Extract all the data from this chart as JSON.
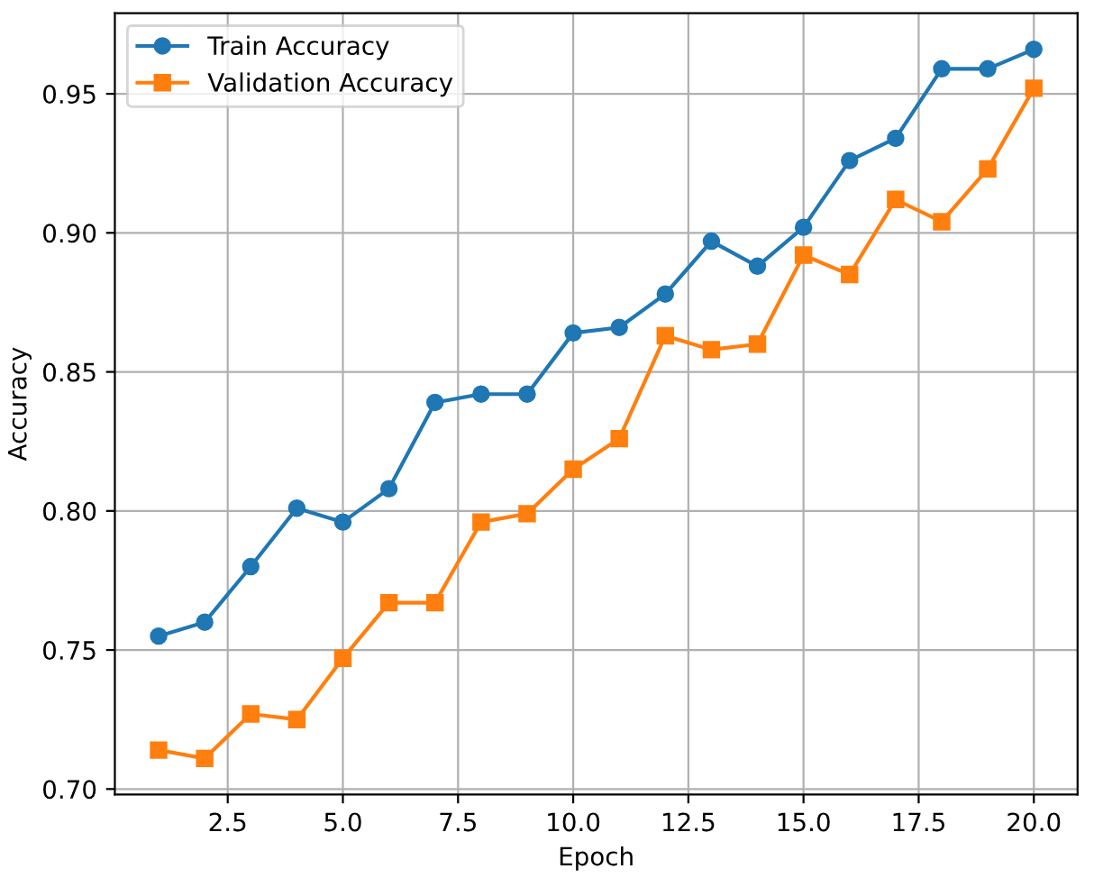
{
  "chart_data": {
    "type": "line",
    "xlabel": "Epoch",
    "ylabel": "Accuracy",
    "x": [
      1,
      2,
      3,
      4,
      5,
      6,
      7,
      8,
      9,
      10,
      11,
      12,
      13,
      14,
      15,
      16,
      17,
      18,
      19,
      20
    ],
    "series": [
      {
        "name": "Train Accuracy",
        "color": "#1f77b4",
        "marker": "circle",
        "values": [
          0.755,
          0.76,
          0.78,
          0.801,
          0.796,
          0.808,
          0.839,
          0.842,
          0.842,
          0.864,
          0.866,
          0.878,
          0.897,
          0.888,
          0.902,
          0.926,
          0.934,
          0.959,
          0.959,
          0.966
        ]
      },
      {
        "name": "Validation Accuracy",
        "color": "#ff7f0e",
        "marker": "square",
        "values": [
          0.714,
          0.711,
          0.727,
          0.725,
          0.747,
          0.767,
          0.767,
          0.796,
          0.799,
          0.815,
          0.826,
          0.863,
          0.858,
          0.86,
          0.892,
          0.885,
          0.912,
          0.904,
          0.923,
          0.952
        ]
      }
    ],
    "xlim": [
      0.05,
      20.95
    ],
    "ylim": [
      0.698,
      0.979
    ],
    "xticks": [
      {
        "value": 2.5,
        "label": "2.5"
      },
      {
        "value": 5,
        "label": "5.0"
      },
      {
        "value": 7.5,
        "label": "7.5"
      },
      {
        "value": 10,
        "label": "10.0"
      },
      {
        "value": 12.5,
        "label": "12.5"
      },
      {
        "value": 15,
        "label": "15.0"
      },
      {
        "value": 17.5,
        "label": "17.5"
      },
      {
        "value": 20,
        "label": "20.0"
      }
    ],
    "yticks": [
      {
        "value": 0.7,
        "label": "0.70"
      },
      {
        "value": 0.75,
        "label": "0.75"
      },
      {
        "value": 0.8,
        "label": "0.80"
      },
      {
        "value": 0.85,
        "label": "0.85"
      },
      {
        "value": 0.9,
        "label": "0.90"
      },
      {
        "value": 0.95,
        "label": "0.95"
      }
    ],
    "grid": true,
    "legend": "top left",
    "line_style": "solid"
  }
}
